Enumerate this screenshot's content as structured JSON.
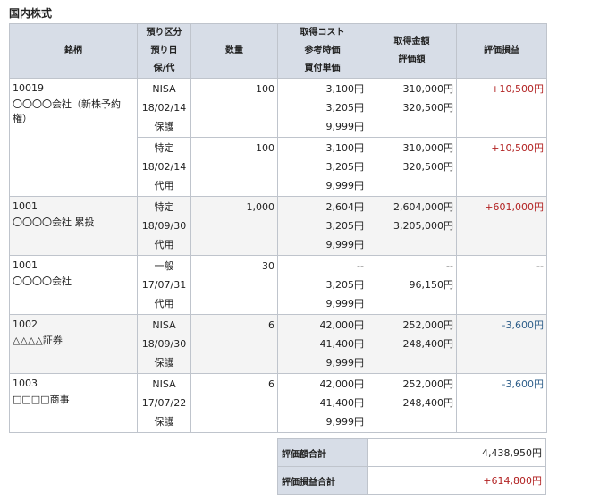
{
  "section_title": "国内株式",
  "headers": {
    "name": "銘柄",
    "deposit": [
      "預り区分",
      "預り日",
      "保/代"
    ],
    "quantity": "数量",
    "cost": [
      "取得コスト",
      "参考時価",
      "買付単価"
    ],
    "amount": [
      "取得金額",
      "評価額"
    ],
    "pl": "評価損益"
  },
  "holdings": [
    {
      "code": "10019",
      "name": "〇〇〇〇会社（新株予約権）",
      "lots": [
        {
          "deposit_type": "NISA",
          "date": "18/02/14",
          "custody": "保護",
          "quantity": "100",
          "cost": "3,100円",
          "ref_price": "3,205円",
          "unit_price": "9,999円",
          "acq_amount": "310,000円",
          "valuation": "320,500円",
          "pl": "+10,500円",
          "pl_sign": "pos"
        },
        {
          "deposit_type": "特定",
          "date": "18/02/14",
          "custody": "代用",
          "quantity": "100",
          "cost": "3,100円",
          "ref_price": "3,205円",
          "unit_price": "9,999円",
          "acq_amount": "310,000円",
          "valuation": "320,500円",
          "pl": "+10,500円",
          "pl_sign": "pos"
        }
      ]
    },
    {
      "code": "1001",
      "name": "〇〇〇〇会社 累投",
      "lots": [
        {
          "deposit_type": "特定",
          "date": "18/09/30",
          "custody": "代用",
          "quantity": "1,000",
          "cost": "2,604円",
          "ref_price": "3,205円",
          "unit_price": "9,999円",
          "acq_amount": "2,604,000円",
          "valuation": "3,205,000円",
          "pl": "+601,000円",
          "pl_sign": "pos"
        }
      ]
    },
    {
      "code": "1001",
      "name": "〇〇〇〇会社",
      "lots": [
        {
          "deposit_type": "一般",
          "date": "17/07/31",
          "custody": "代用",
          "quantity": "30",
          "cost": "--",
          "ref_price": "3,205円",
          "unit_price": "9,999円",
          "acq_amount": "--",
          "valuation": "96,150円",
          "pl": "--",
          "pl_sign": "neu"
        }
      ]
    },
    {
      "code": "1002",
      "name": "△△△△証券",
      "lots": [
        {
          "deposit_type": "NISA",
          "date": "18/09/30",
          "custody": "保護",
          "quantity": "6",
          "cost": "42,000円",
          "ref_price": "41,400円",
          "unit_price": "9,999円",
          "acq_amount": "252,000円",
          "valuation": "248,400円",
          "pl": "-3,600円",
          "pl_sign": "neg"
        }
      ]
    },
    {
      "code": "1003",
      "name": "□□□□商事",
      "lots": [
        {
          "deposit_type": "NISA",
          "date": "17/07/22",
          "custody": "保護",
          "quantity": "6",
          "cost": "42,000円",
          "ref_price": "41,400円",
          "unit_price": "9,999円",
          "acq_amount": "252,000円",
          "valuation": "248,400円",
          "pl": "-3,600円",
          "pl_sign": "neg"
        }
      ]
    }
  ],
  "totals": {
    "valuation_label": "評価額合計",
    "valuation_value": "4,438,950円",
    "pl_label": "評価損益合計",
    "pl_value": "+614,800円",
    "pl_sign": "pos"
  },
  "colors": {
    "header_bg": "#d7dde7",
    "border": "#bfc4cc",
    "alt_row_bg": "#f4f4f4",
    "positive": "#b22222",
    "negative": "#2f5f8a"
  }
}
